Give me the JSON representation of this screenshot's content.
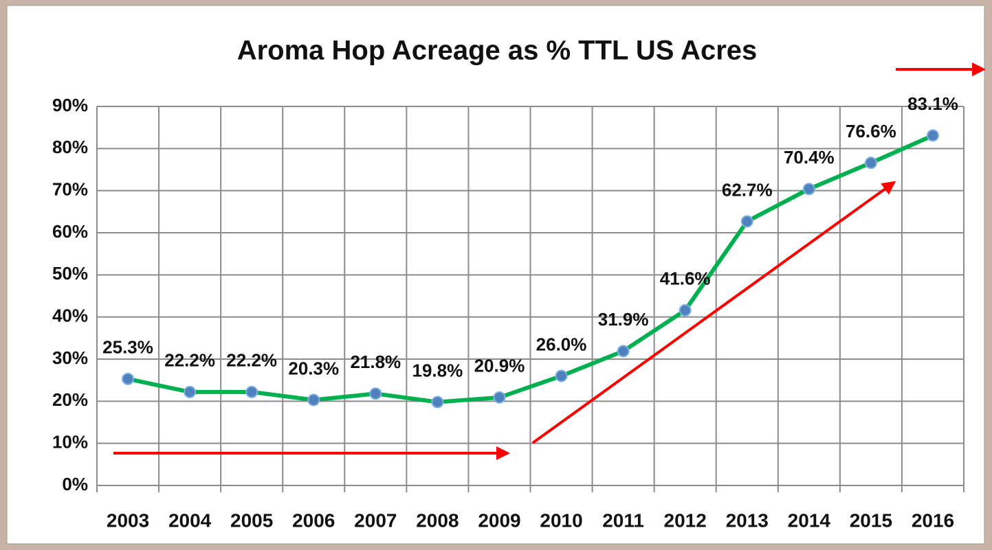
{
  "chart_data": {
    "type": "line",
    "title": "Aroma Hop Acreage as % TTL US Acres",
    "categories": [
      "2003",
      "2004",
      "2005",
      "2006",
      "2007",
      "2008",
      "2009",
      "2010",
      "2011",
      "2012",
      "2013",
      "2014",
      "2015",
      "2016"
    ],
    "series": [
      {
        "name": "Aroma Hop Acreage",
        "color": "#00b050",
        "values": [
          25.3,
          22.2,
          22.2,
          20.3,
          21.8,
          19.8,
          20.9,
          26.0,
          31.9,
          41.6,
          62.7,
          70.4,
          76.6,
          83.1
        ],
        "value_labels": [
          "25.3%",
          "22.2%",
          "22.2%",
          "20.3%",
          "21.8%",
          "19.8%",
          "20.9%",
          "26.0%",
          "31.9%",
          "41.6%",
          "62.7%",
          "70.4%",
          "76.6%",
          "83.1%"
        ]
      }
    ],
    "ylim": [
      0,
      90
    ],
    "yticks": [
      {
        "value": 0,
        "label": "0%"
      },
      {
        "value": 10,
        "label": "10%"
      },
      {
        "value": 20,
        "label": "20%"
      },
      {
        "value": 30,
        "label": "30%"
      },
      {
        "value": 40,
        "label": "40%"
      },
      {
        "value": 50,
        "label": "50%"
      },
      {
        "value": 60,
        "label": "60%"
      },
      {
        "value": 70,
        "label": "70%"
      },
      {
        "value": 80,
        "label": "80%"
      },
      {
        "value": 90,
        "label": "90%"
      }
    ],
    "grid": true
  }
}
